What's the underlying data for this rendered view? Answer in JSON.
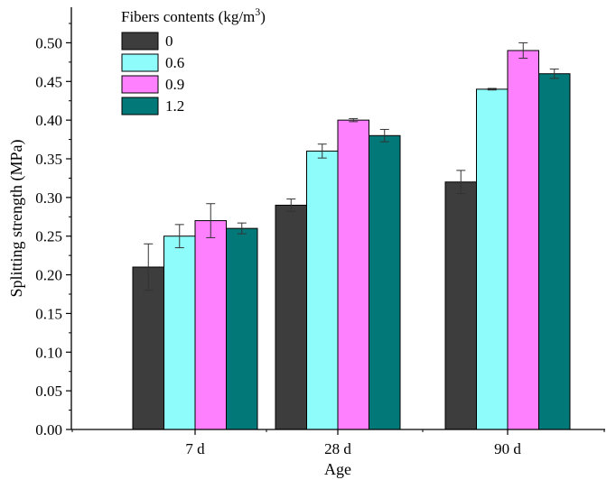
{
  "chart_data": {
    "type": "bar",
    "title": "",
    "xlabel": "Age",
    "ylabel": "Splitting strength (MPa)",
    "categories": [
      "7 d",
      "28 d",
      "90 d"
    ],
    "ylim": [
      0,
      0.54
    ],
    "yticks": [
      "0.00",
      "0.05",
      "0.10",
      "0.15",
      "0.20",
      "0.25",
      "0.30",
      "0.35",
      "0.40",
      "0.45",
      "0.50"
    ],
    "legend": {
      "title": "Fibers contents (kg/m",
      "title_sup": "3",
      "title_end": ")",
      "placement": "top-left"
    },
    "series": [
      {
        "name": "0",
        "color": "#3d3d3d",
        "values": [
          0.21,
          0.29,
          0.32
        ],
        "errors": [
          0.03,
          0.008,
          0.015
        ]
      },
      {
        "name": "0.6",
        "color": "#8ffcfc",
        "values": [
          0.25,
          0.36,
          0.44
        ],
        "errors": [
          0.015,
          0.009,
          0.001
        ]
      },
      {
        "name": "0.9",
        "color": "#ff80ff",
        "values": [
          0.27,
          0.4,
          0.49
        ],
        "errors": [
          0.022,
          0.002,
          0.01
        ]
      },
      {
        "name": "1.2",
        "color": "#027878",
        "values": [
          0.26,
          0.38,
          0.46
        ],
        "errors": [
          0.007,
          0.008,
          0.006
        ]
      }
    ],
    "grid": false
  }
}
